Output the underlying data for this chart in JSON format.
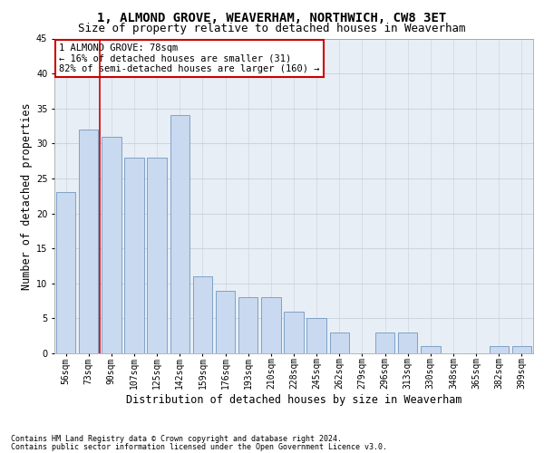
{
  "title": "1, ALMOND GROVE, WEAVERHAM, NORTHWICH, CW8 3ET",
  "subtitle": "Size of property relative to detached houses in Weaverham",
  "xlabel": "Distribution of detached houses by size in Weaverham",
  "ylabel": "Number of detached properties",
  "footnote1": "Contains HM Land Registry data © Crown copyright and database right 2024.",
  "footnote2": "Contains public sector information licensed under the Open Government Licence v3.0.",
  "annotation_line1": "1 ALMOND GROVE: 78sqm",
  "annotation_line2": "← 16% of detached houses are smaller (31)",
  "annotation_line3": "82% of semi-detached houses are larger (160) →",
  "categories": [
    "56sqm",
    "73sqm",
    "90sqm",
    "107sqm",
    "125sqm",
    "142sqm",
    "159sqm",
    "176sqm",
    "193sqm",
    "210sqm",
    "228sqm",
    "245sqm",
    "262sqm",
    "279sqm",
    "296sqm",
    "313sqm",
    "330sqm",
    "348sqm",
    "365sqm",
    "382sqm",
    "399sqm"
  ],
  "values": [
    23,
    32,
    31,
    28,
    28,
    34,
    11,
    9,
    8,
    8,
    6,
    5,
    3,
    0,
    3,
    3,
    1,
    0,
    0,
    1,
    1
  ],
  "bar_color": "#c9d9ef",
  "bar_edge_color": "#7098c0",
  "red_line_x": 1.5,
  "ylim": [
    0,
    45
  ],
  "background_color": "#ffffff",
  "grid_color": "#c8d0dc",
  "title_fontsize": 10,
  "subtitle_fontsize": 9,
  "axis_label_fontsize": 8.5,
  "tick_fontsize": 7,
  "annotation_fontsize": 7.5,
  "footnote_fontsize": 6,
  "annotation_box_color": "#ffffff",
  "annotation_box_edge": "#cc0000",
  "red_line_color": "#cc0000",
  "ax_bg_color": "#e8eef5"
}
